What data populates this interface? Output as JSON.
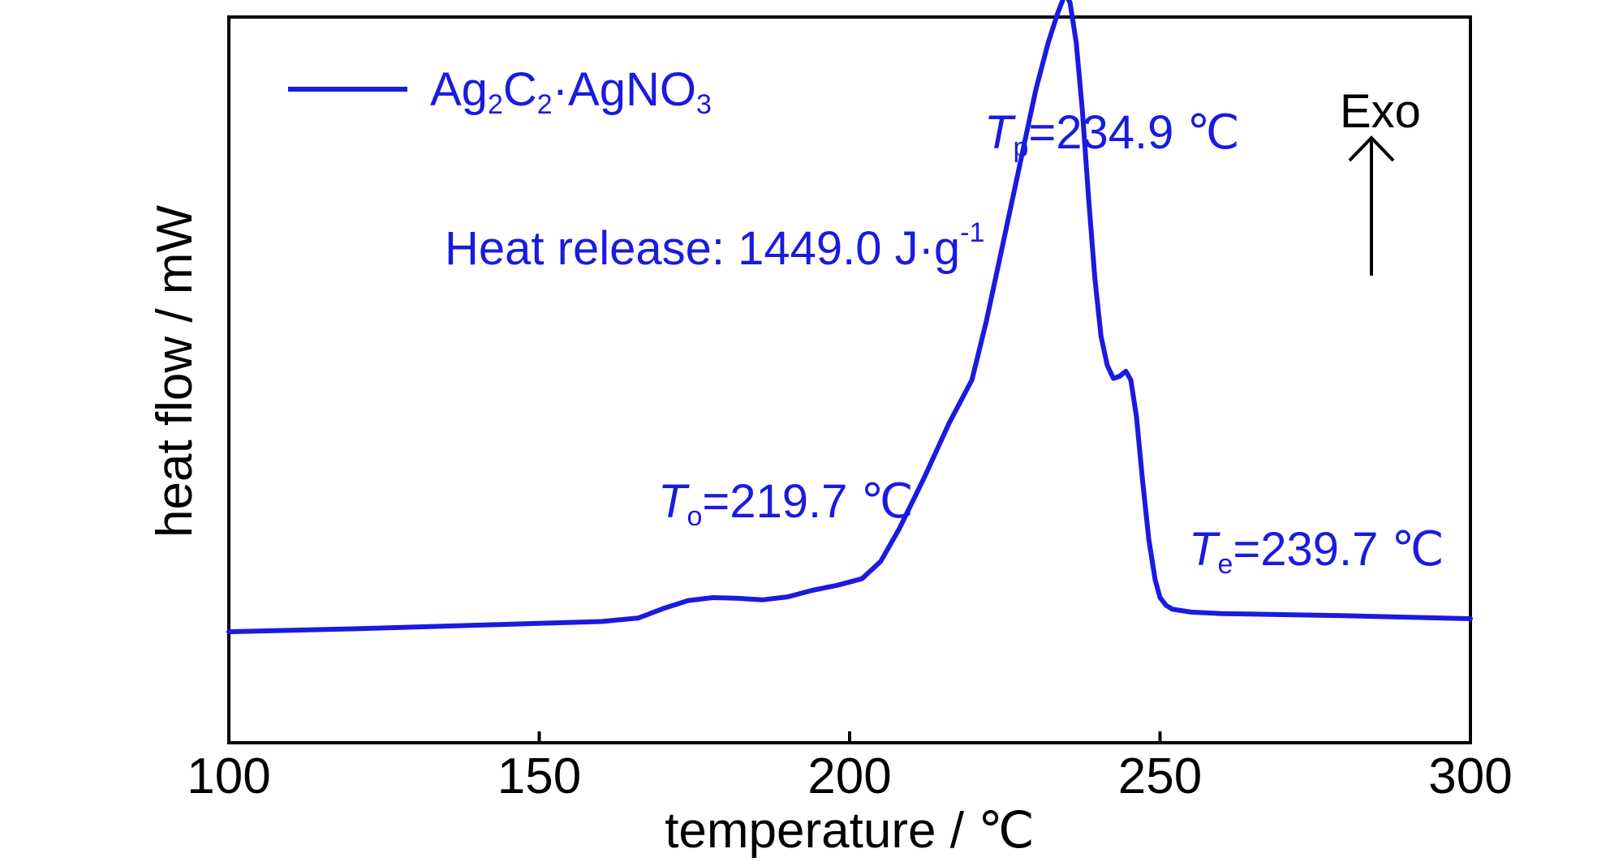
{
  "chart_data": {
    "type": "line",
    "xlabel": "temperature / ℃",
    "ylabel": "heat flow / mW",
    "xlim": [
      100,
      300
    ],
    "ylim": [
      0,
      100
    ],
    "grid": false,
    "legend_position": "top-left",
    "x_ticks": [
      "100",
      "150",
      "200",
      "250",
      "300"
    ],
    "y_ticks_shown": false,
    "series": [
      {
        "name": "Ag₂C₂·AgNO₃",
        "color": "#1a1ae0",
        "x": [
          100,
          120,
          140,
          160,
          166,
          170,
          174,
          178,
          182,
          186,
          190,
          194,
          198,
          202,
          205,
          208,
          212,
          216,
          219.7,
          222,
          225,
          228,
          230,
          232,
          233.5,
          234.4,
          234.9,
          235.5,
          236.5,
          237.5,
          238.5,
          239.5,
          240.5,
          241.5,
          242.5,
          243.5,
          244.5,
          245.3,
          246.2,
          247.2,
          248.2,
          249.2,
          250,
          251,
          252,
          255,
          260,
          280,
          300
        ],
        "y": [
          15.3,
          15.7,
          16.2,
          16.7,
          17.2,
          18.5,
          19.6,
          20,
          19.9,
          19.7,
          20.1,
          21,
          21.7,
          22.6,
          25,
          29.5,
          36.5,
          44,
          50,
          58,
          70,
          82,
          90,
          96.5,
          100.5,
          102.5,
          103,
          102,
          96.5,
          87,
          75,
          64,
          56,
          52,
          50.2,
          50.5,
          51.2,
          50,
          45,
          36,
          28,
          22.5,
          20,
          18.9,
          18.4,
          18,
          17.8,
          17.5,
          17.1
        ]
      }
    ],
    "legend": [
      "Ag₂C₂·AgNO₃"
    ],
    "annotations": {
      "peak": {
        "italic": "T",
        "sub": "p",
        "text": "=234.9 ℃"
      },
      "onset": {
        "italic": "T",
        "sub": "o",
        "text": "=219.7 ℃"
      },
      "end": {
        "italic": "T",
        "sub": "e",
        "text": "=239.7 ℃"
      },
      "heat_release": {
        "text": "Heat release: 1449.0 J·g",
        "sup": "-1"
      },
      "exo": "Exo"
    }
  },
  "legend_label": {
    "a": "Ag",
    "b": "2",
    "c": "C",
    "d": "2",
    "e": "·AgNO",
    "f": "3"
  }
}
